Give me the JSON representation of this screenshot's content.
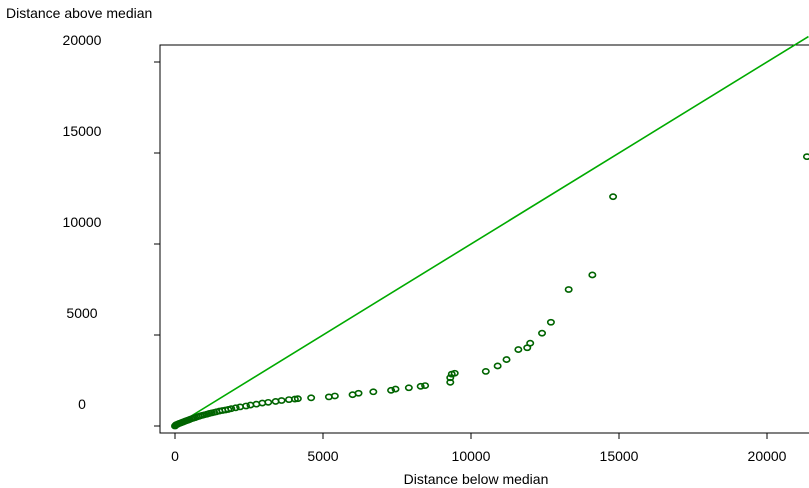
{
  "chart_data": {
    "type": "scatter",
    "title": "",
    "ylabel": "Distance above median",
    "xlabel": "Distance below median",
    "xlim": [
      -500,
      21500
    ],
    "ylim": [
      -500,
      21500
    ],
    "xticks": [
      0,
      5000,
      10000,
      15000,
      20000
    ],
    "yticks": [
      0,
      5000,
      10000,
      15000,
      20000
    ],
    "xtick_labels": [
      "0",
      "5000",
      "10000",
      "15000",
      "20000"
    ],
    "ytick_labels": [
      "0",
      "5000",
      "10000",
      "15000",
      "20000"
    ],
    "grid": false,
    "legend": "none",
    "colors": {
      "points": "#006400",
      "reference_line": "#00aa00",
      "frame": "#000000"
    },
    "reference_line": {
      "type": "y=x",
      "from": [
        0,
        0
      ],
      "to": [
        21400,
        21400
      ]
    },
    "series": [
      {
        "values": [
          [
            0,
            0
          ],
          [
            20,
            40
          ],
          [
            40,
            70
          ],
          [
            70,
            90
          ],
          [
            100,
            110
          ],
          [
            140,
            140
          ],
          [
            180,
            160
          ],
          [
            220,
            190
          ],
          [
            260,
            210
          ],
          [
            300,
            240
          ],
          [
            350,
            270
          ],
          [
            400,
            300
          ],
          [
            450,
            330
          ],
          [
            500,
            360
          ],
          [
            560,
            400
          ],
          [
            620,
            430
          ],
          [
            680,
            460
          ],
          [
            740,
            500
          ],
          [
            800,
            530
          ],
          [
            860,
            560
          ],
          [
            930,
            590
          ],
          [
            1000,
            620
          ],
          [
            1080,
            650
          ],
          [
            1160,
            690
          ],
          [
            1240,
            720
          ],
          [
            1320,
            750
          ],
          [
            1400,
            780
          ],
          [
            1500,
            820
          ],
          [
            1600,
            850
          ],
          [
            1700,
            880
          ],
          [
            1800,
            910
          ],
          [
            1900,
            950
          ],
          [
            2050,
            1000
          ],
          [
            2200,
            1050
          ],
          [
            2400,
            1100
          ],
          [
            2550,
            1150
          ],
          [
            2750,
            1200
          ],
          [
            2950,
            1260
          ],
          [
            3150,
            1300
          ],
          [
            3400,
            1350
          ],
          [
            3600,
            1400
          ],
          [
            3850,
            1450
          ],
          [
            4050,
            1480
          ],
          [
            4150,
            1500
          ],
          [
            4600,
            1550
          ],
          [
            5200,
            1600
          ],
          [
            5400,
            1650
          ],
          [
            6000,
            1720
          ],
          [
            6200,
            1800
          ],
          [
            6700,
            1880
          ],
          [
            7300,
            1960
          ],
          [
            7450,
            2030
          ],
          [
            7900,
            2100
          ],
          [
            8300,
            2180
          ],
          [
            8450,
            2220
          ],
          [
            9300,
            2400
          ],
          [
            9300,
            2650
          ],
          [
            9350,
            2850
          ],
          [
            9450,
            2900
          ],
          [
            10500,
            3000
          ],
          [
            10900,
            3300
          ],
          [
            11200,
            3650
          ],
          [
            11600,
            4200
          ],
          [
            11900,
            4300
          ],
          [
            12000,
            4550
          ],
          [
            12400,
            5100
          ],
          [
            12700,
            5700
          ],
          [
            13300,
            7500
          ],
          [
            14100,
            8300
          ],
          [
            14800,
            12600
          ],
          [
            21350,
            14800
          ]
        ]
      }
    ]
  }
}
